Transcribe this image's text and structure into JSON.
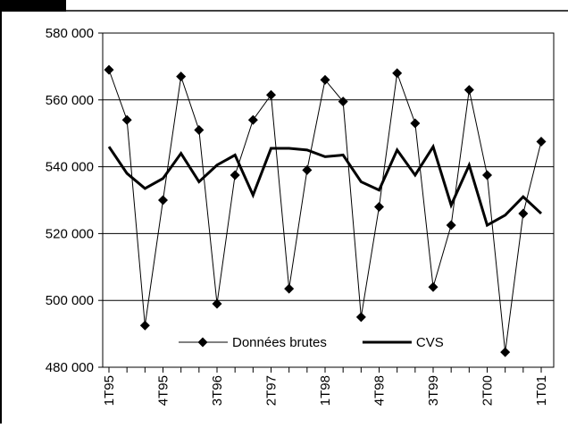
{
  "chart_data": {
    "type": "line",
    "categories": [
      "1T95",
      null,
      null,
      "4T95",
      null,
      null,
      "3T96",
      null,
      null,
      "2T97",
      null,
      null,
      "1T98",
      null,
      null,
      "4T98",
      null,
      null,
      "3T99",
      null,
      null,
      "2T00",
      null,
      null,
      "1T01"
    ],
    "series": [
      {
        "name": "Données brutes",
        "color": "#000000",
        "marker": "diamond",
        "width": 1,
        "values": [
          569000,
          554000,
          492500,
          530000,
          567000,
          551000,
          499000,
          537500,
          554000,
          561500,
          503500,
          539000,
          566000,
          559500,
          495000,
          528000,
          568000,
          553000,
          504000,
          522500,
          563000,
          537500,
          484500,
          526000,
          547500
        ]
      },
      {
        "name": "CVS",
        "color": "#000000",
        "marker": "none",
        "width": 3,
        "values": [
          546000,
          538000,
          533500,
          536500,
          544000,
          535500,
          540500,
          543500,
          531500,
          545500,
          545500,
          545000,
          543000,
          543500,
          535500,
          533000,
          545000,
          537500,
          546000,
          528500,
          540500,
          522500,
          525500,
          531000,
          526000
        ]
      }
    ],
    "ylim": [
      480000,
      580000
    ],
    "yticks": [
      {
        "value": 480000,
        "label": "480 000"
      },
      {
        "value": 500000,
        "label": "500 000"
      },
      {
        "value": 520000,
        "label": "520 000"
      },
      {
        "value": 540000,
        "label": "540 000"
      },
      {
        "value": 560000,
        "label": "560 000"
      },
      {
        "value": 580000,
        "label": "580 000"
      }
    ],
    "grid": true,
    "legend": "bottom"
  }
}
